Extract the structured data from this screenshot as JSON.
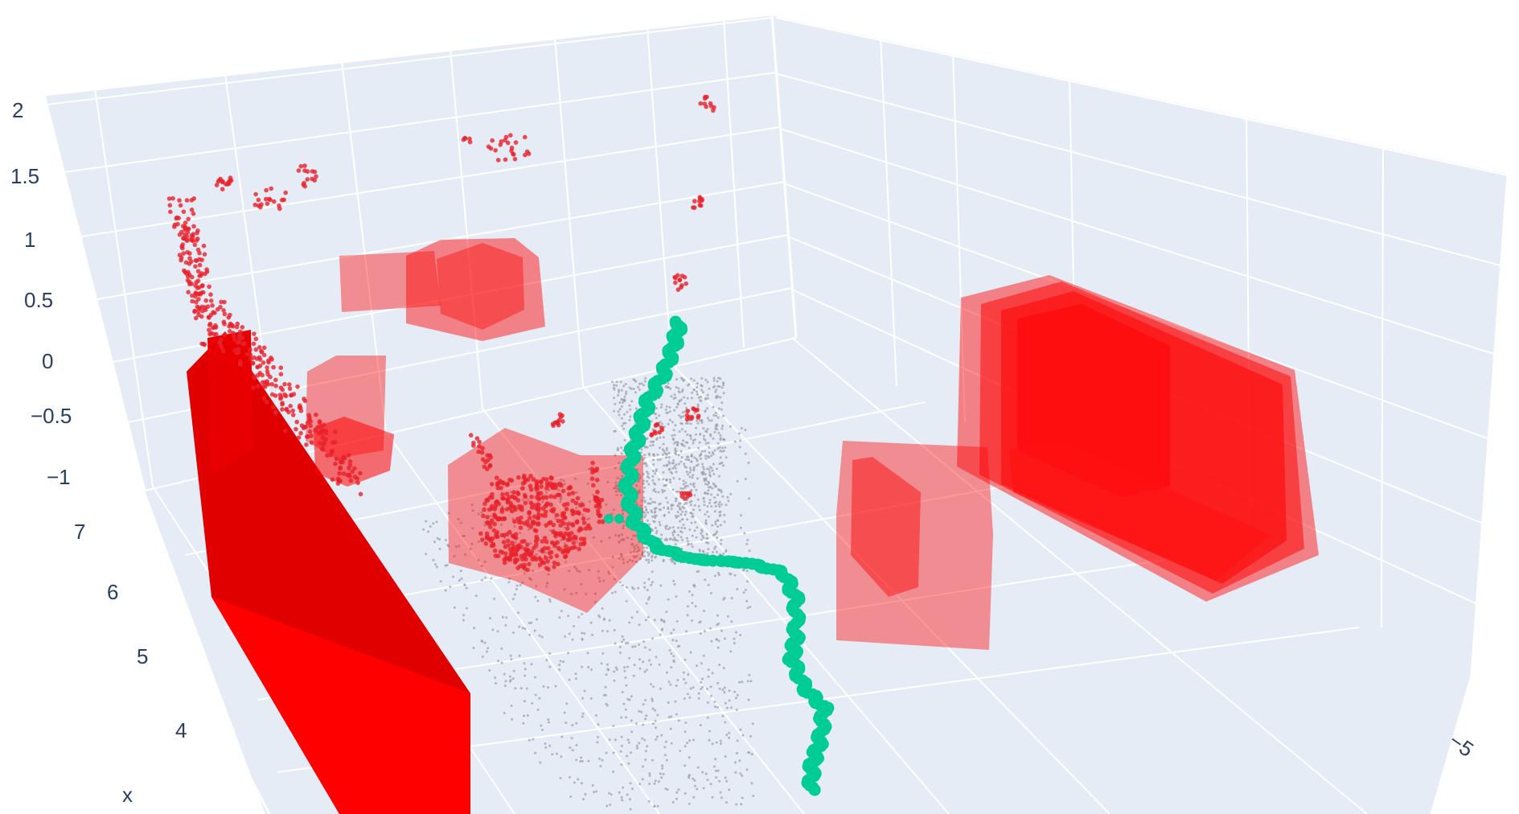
{
  "chart_data": {
    "type": "scatter3d",
    "z_axis": {
      "ticks": [
        "2",
        "1.5",
        "1",
        "0.5",
        "0",
        "−0.5",
        "−1"
      ]
    },
    "x_axis": {
      "title": "x",
      "ticks": [
        "7",
        "6",
        "5",
        "4"
      ]
    },
    "y_axis": {
      "ticks": [
        "−5"
      ]
    },
    "grid": true,
    "background_color": "#e5ecf6",
    "grid_color": "#ffffff",
    "trajectory_color": "#00cc96",
    "obstacle_color": "#ff0000",
    "point_cloud_color": "#a0a0a8",
    "obstacle_point_color": "#e8202a",
    "series": [
      {
        "kind": "obstacle-boxes",
        "count": 9
      },
      {
        "kind": "obstacle-points"
      },
      {
        "kind": "scene-points"
      },
      {
        "kind": "trajectory"
      }
    ]
  }
}
